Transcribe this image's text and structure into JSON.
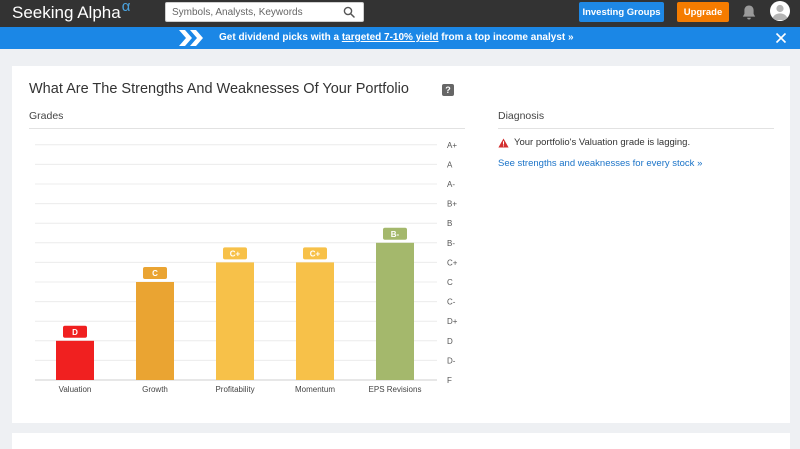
{
  "header": {
    "logo_text": "Seeking Alpha",
    "logo_symbol": "α",
    "search_placeholder": "Symbols, Analysts, Keywords",
    "investing_groups_label": "Investing Groups",
    "upgrade_label": "Upgrade",
    "colors": {
      "bar": "#333333",
      "investing_groups": "#1e88e5",
      "upgrade": "#f57c00"
    }
  },
  "banner": {
    "text_before": "Get dividend picks with a ",
    "link_text": "targeted 7-10% yield",
    "text_after": " from a top income analyst »",
    "color": "#1b87e6"
  },
  "card": {
    "title": "What Are The Strengths And Weaknesses Of Your Portfolio",
    "help_label": "?",
    "grades_label": "Grades",
    "diagnosis_label": "Diagnosis",
    "diagnosis": {
      "message": "Your portfolio's Valuation grade is lagging.",
      "link": "See strengths and weaknesses for every stock »"
    }
  },
  "chart_data": {
    "type": "bar",
    "scale": [
      "F",
      "D-",
      "D",
      "D+",
      "C-",
      "C",
      "C+",
      "B-",
      "B",
      "B+",
      "A-",
      "A",
      "A+"
    ],
    "categories": [
      "Valuation",
      "Growth",
      "Profitability",
      "Momentum",
      "EPS Revisions"
    ],
    "grades": [
      "D",
      "C",
      "C+",
      "C+",
      "B-"
    ],
    "colors": [
      "#f02020",
      "#eaa432",
      "#f7c149",
      "#f7c149",
      "#a4b86c"
    ],
    "grid": true
  }
}
